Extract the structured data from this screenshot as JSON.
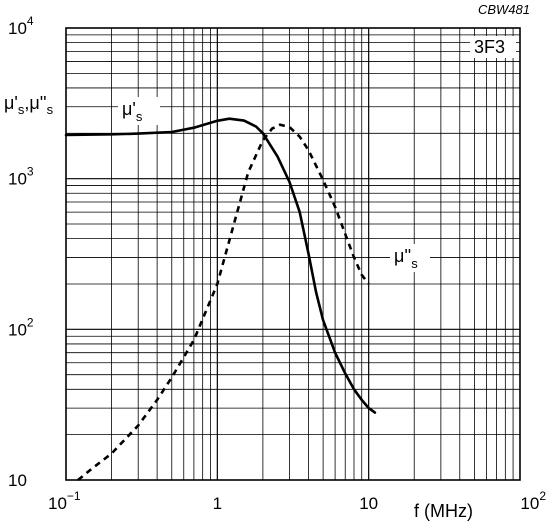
{
  "figure_code": "CBW481",
  "material_label": "3F3",
  "chart_data": {
    "type": "line",
    "x_scale": "log",
    "y_scale": "log",
    "xlim": [
      0.1,
      100
    ],
    "ylim": [
      10,
      10000
    ],
    "grid": true,
    "x_ticks": [
      {
        "base": "10",
        "exp": "−1"
      },
      {
        "base": "1",
        "exp": ""
      },
      {
        "base": "10",
        "exp": ""
      },
      {
        "base": "10",
        "exp": "2"
      }
    ],
    "y_ticks": [
      {
        "base": "10",
        "exp": "4"
      },
      {
        "base": "10",
        "exp": "3"
      },
      {
        "base": "10",
        "exp": "2"
      },
      {
        "base": "10",
        "exp": ""
      }
    ],
    "xlabel": "f  (MHz)",
    "ylabel": {
      "mu_prime": "μ'",
      "sep": ",",
      "mu_dprime": "μ''",
      "sub": "s"
    },
    "series": [
      {
        "name": "μ's",
        "label": {
          "main": "μ'",
          "sub": "s"
        },
        "style": "solid",
        "x": [
          0.1,
          0.2,
          0.3,
          0.5,
          0.7,
          1.0,
          1.2,
          1.5,
          1.8,
          2.0,
          2.5,
          3.0,
          3.5,
          4.0,
          4.5,
          5.0,
          6.0,
          7.0,
          8.0,
          9.0,
          10.0,
          11.0
        ],
        "y": [
          1950,
          1970,
          1990,
          2040,
          2180,
          2420,
          2500,
          2430,
          2220,
          2000,
          1400,
          950,
          600,
          320,
          175,
          115,
          70,
          51,
          40,
          34,
          30,
          28
        ]
      },
      {
        "name": "μ''s",
        "label": {
          "main": "μ''",
          "sub": "s"
        },
        "style": "dashed",
        "x": [
          0.12,
          0.15,
          0.2,
          0.3,
          0.4,
          0.5,
          0.7,
          1.0,
          1.3,
          1.6,
          2.0,
          2.3,
          2.6,
          3.0,
          3.5,
          4.0,
          5.0,
          6.0,
          7.0,
          8.0,
          9.0,
          10.0
        ],
        "y": [
          10,
          12,
          15,
          23,
          34,
          48,
          85,
          200,
          520,
          1100,
          1800,
          2150,
          2280,
          2200,
          1900,
          1550,
          980,
          650,
          430,
          300,
          230,
          200
        ]
      }
    ]
  }
}
